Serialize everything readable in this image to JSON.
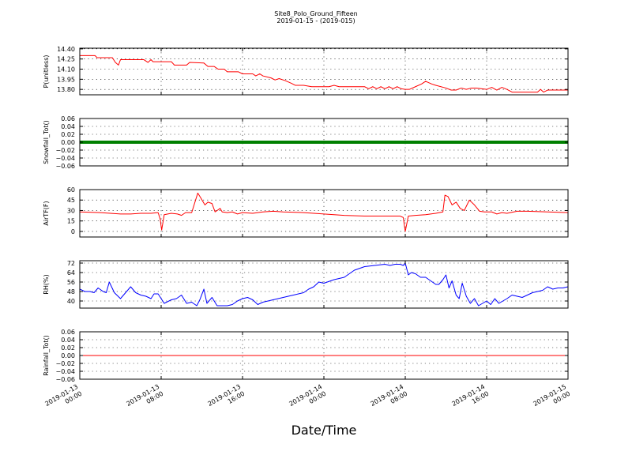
{
  "figure": {
    "title": "Site8_Polo_Ground_Fifteen",
    "subtitle": "2019-01-15 - (2019-015)",
    "xlabel": "Date/Time"
  },
  "x_ticks": [
    {
      "x": 0,
      "line1": "2019-01-13",
      "line2": "00:00"
    },
    {
      "x": 8,
      "line1": "2019-01-13",
      "line2": "08:00"
    },
    {
      "x": 16,
      "line1": "2019-01-13",
      "line2": "16:00"
    },
    {
      "x": 24,
      "line1": "2019-01-14",
      "line2": "00:00"
    },
    {
      "x": 32,
      "line1": "2019-01-14",
      "line2": "08:00"
    },
    {
      "x": 40,
      "line1": "2019-01-14",
      "line2": "16:00"
    },
    {
      "x": 48,
      "line1": "2019-01-15",
      "line2": "00:00"
    }
  ],
  "chart_data": [
    {
      "type": "line",
      "ylabel": "P(unitless)",
      "xlim": [
        0,
        48
      ],
      "ylim": [
        13.72,
        14.41
      ],
      "yticks": [
        13.8,
        13.95,
        14.1,
        14.25,
        14.4
      ],
      "ytick_labels": [
        "13.80",
        "13.95",
        "14.10",
        "14.25",
        "14.40"
      ],
      "grid": true,
      "color": "#ff0000",
      "series": [
        {
          "x": [
            0,
            1.5,
            1.7,
            3.2,
            3.5,
            3.8,
            4.0,
            6.3,
            6.7,
            7.0,
            7.2,
            9.0,
            9.3,
            10.5,
            10.8,
            12.2,
            12.6,
            13.2,
            13.6,
            14.2,
            14.5,
            15.6,
            16.0,
            17.0,
            17.3,
            17.7,
            18.0,
            18.8,
            19.2,
            19.6,
            20.2,
            20.8,
            21.2,
            22.0,
            22.8,
            23.2,
            24.5,
            25.0,
            25.5,
            26.5,
            28.0,
            28.4,
            28.8,
            29.2,
            29.6,
            30.0,
            30.4,
            30.8,
            31.2,
            31.6,
            32.0,
            32.4,
            33.0,
            33.6,
            34.0,
            34.6,
            35.0,
            36.0,
            36.5,
            37.0,
            37.5,
            38.0,
            38.5,
            39.0,
            40.0,
            40.5,
            41.0,
            41.5,
            42.0,
            42.5,
            43.0,
            43.5,
            44.0,
            45.0,
            45.3,
            45.6,
            46.0,
            47.0,
            48.0
          ],
          "y": [
            14.3,
            14.3,
            14.27,
            14.27,
            14.2,
            14.16,
            14.24,
            14.24,
            14.2,
            14.24,
            14.21,
            14.21,
            14.16,
            14.16,
            14.2,
            14.19,
            14.14,
            14.14,
            14.1,
            14.1,
            14.06,
            14.06,
            14.03,
            14.03,
            14.0,
            14.03,
            14.0,
            13.97,
            13.94,
            13.96,
            13.93,
            13.89,
            13.86,
            13.86,
            13.84,
            13.84,
            13.84,
            13.86,
            13.84,
            13.84,
            13.84,
            13.81,
            13.84,
            13.81,
            13.84,
            13.81,
            13.84,
            13.81,
            13.84,
            13.81,
            13.8,
            13.8,
            13.84,
            13.88,
            13.92,
            13.88,
            13.86,
            13.82,
            13.79,
            13.79,
            13.82,
            13.8,
            13.82,
            13.82,
            13.8,
            13.83,
            13.79,
            13.83,
            13.8,
            13.76,
            13.76,
            13.76,
            13.76,
            13.76,
            13.8,
            13.76,
            13.79,
            13.79,
            13.79
          ]
        }
      ]
    },
    {
      "type": "line",
      "ylabel": "Snowfall_Tot()",
      "xlim": [
        0,
        48
      ],
      "ylim": [
        -0.06,
        0.06
      ],
      "yticks": [
        -0.06,
        -0.04,
        -0.02,
        0.0,
        0.02,
        0.04,
        0.06
      ],
      "ytick_labels": [
        "−0.06",
        "−0.04",
        "−0.02",
        "0.00",
        "0.02",
        "0.04",
        "0.06"
      ],
      "grid": true,
      "color": "#008000",
      "marker": "point",
      "series": [
        {
          "x": [
            0,
            48
          ],
          "y": [
            0.0,
            0.0
          ]
        }
      ]
    },
    {
      "type": "line",
      "ylabel": "AirTF(F)",
      "xlim": [
        0,
        48
      ],
      "ylim": [
        -8,
        60
      ],
      "yticks": [
        0,
        15,
        30,
        45,
        60
      ],
      "ytick_labels": [
        "0",
        "15",
        "30",
        "45",
        "60"
      ],
      "grid": true,
      "color": "#ff0000",
      "series": [
        {
          "x": [
            0,
            2,
            3,
            4,
            5,
            6,
            7,
            7.7,
            7.9,
            8.05,
            8.3,
            9,
            9.6,
            10,
            10.4,
            11,
            11.6,
            11.9,
            12.3,
            12.6,
            13.0,
            13.3,
            13.8,
            14.0,
            14.5,
            15,
            15.5,
            16,
            17,
            18,
            19,
            20,
            22,
            24,
            26,
            28,
            30,
            31.5,
            31.8,
            32.0,
            32.3,
            33,
            34,
            35,
            35.7,
            35.9,
            36.2,
            36.6,
            37,
            37.4,
            37.8,
            38.3,
            38.8,
            39.3,
            39.8,
            40.5,
            41,
            41.5,
            42,
            43,
            44,
            46,
            48
          ],
          "y": [
            28,
            27,
            26,
            25,
            25,
            26,
            26,
            27,
            18,
            2,
            24,
            26,
            25,
            23,
            27,
            27,
            55,
            48,
            38,
            42,
            40,
            28,
            33,
            28,
            27,
            28,
            25,
            27,
            26,
            28,
            29,
            28,
            27,
            25,
            23,
            22,
            22,
            22,
            20,
            0,
            22,
            23,
            24,
            26,
            28,
            52,
            50,
            38,
            42,
            33,
            30,
            45,
            38,
            29,
            28,
            28,
            25,
            27,
            26,
            29,
            29,
            28,
            27
          ]
        }
      ]
    },
    {
      "type": "line",
      "ylabel": "RH(%)",
      "xlim": [
        0,
        48
      ],
      "ylim": [
        34,
        74
      ],
      "yticks": [
        40,
        48,
        56,
        64,
        72
      ],
      "ytick_labels": [
        "40",
        "48",
        "56",
        "64",
        "72"
      ],
      "grid": true,
      "color": "#0000ff",
      "series": [
        {
          "x": [
            0,
            0.5,
            1.0,
            1.4,
            1.8,
            2.3,
            2.6,
            2.9,
            3.4,
            4.0,
            4.5,
            5.0,
            5.5,
            6.0,
            6.5,
            7.0,
            7.3,
            7.7,
            8.3,
            9.0,
            9.5,
            10.0,
            10.5,
            11.0,
            11.5,
            11.8,
            12.2,
            12.5,
            13.0,
            13.5,
            14.0,
            14.5,
            15.0,
            15.5,
            16.0,
            16.5,
            17.0,
            17.5,
            18.0,
            19.0,
            20.0,
            21.0,
            22.0,
            22.5,
            23.0,
            23.5,
            24.0,
            25.0,
            26.0,
            27.0,
            28.0,
            29.0,
            30.0,
            30.5,
            31.0,
            31.5,
            31.8,
            32.0,
            32.3,
            32.6,
            33.0,
            33.5,
            34.0,
            34.5,
            35.0,
            35.3,
            35.7,
            36.0,
            36.3,
            36.6,
            37.0,
            37.3,
            37.6,
            38.0,
            38.4,
            38.8,
            39.2,
            39.6,
            40.0,
            40.4,
            40.8,
            41.2,
            41.6,
            42.0,
            42.5,
            43.0,
            43.5,
            44.0,
            44.5,
            45.0,
            45.5,
            46.0,
            46.5,
            47.0,
            47.5,
            48.0
          ],
          "y": [
            50,
            48,
            48,
            47,
            51,
            48,
            47,
            56,
            47,
            42,
            47,
            52,
            47,
            45,
            44,
            42,
            46,
            46,
            38,
            41,
            42,
            45,
            38,
            39,
            36,
            41,
            50,
            38,
            43,
            36,
            36,
            36,
            37,
            40,
            42,
            43,
            41,
            37,
            39,
            41,
            43,
            45,
            47,
            50,
            52,
            56,
            55,
            58,
            60,
            66,
            69,
            70,
            71,
            70,
            71,
            71,
            70,
            72,
            62,
            64,
            63,
            60,
            60,
            57,
            54,
            54,
            58,
            62,
            51,
            57,
            45,
            42,
            55,
            44,
            38,
            42,
            36,
            38,
            40,
            37,
            42,
            38,
            40,
            42,
            45,
            44,
            43,
            45,
            47,
            48,
            49,
            52,
            50,
            51,
            51,
            52
          ]
        }
      ]
    },
    {
      "type": "line",
      "ylabel": "Rainfall_Tot()",
      "xlim": [
        0,
        48
      ],
      "ylim": [
        -0.06,
        0.06
      ],
      "yticks": [
        -0.06,
        -0.04,
        -0.02,
        0.0,
        0.02,
        0.04,
        0.06
      ],
      "ytick_labels": [
        "−0.06",
        "−0.04",
        "−0.02",
        "0.00",
        "0.02",
        "0.04",
        "0.06"
      ],
      "grid": true,
      "color": "#ff0000",
      "series": [
        {
          "x": [
            0,
            48
          ],
          "y": [
            0.0,
            0.0
          ]
        }
      ]
    }
  ]
}
